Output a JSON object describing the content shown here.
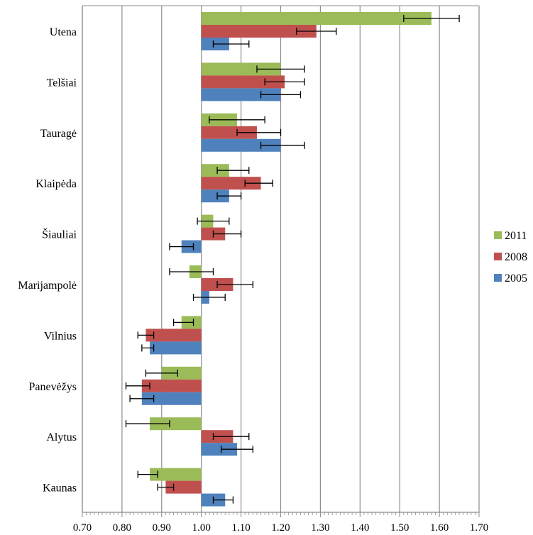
{
  "chart_data": {
    "type": "bar",
    "orientation": "horizontal",
    "base_value": 1.0,
    "categories": [
      "Utena",
      "Telšiai",
      "Tauragė",
      "Klaipėda",
      "Šiauliai",
      "Marijampolė",
      "Vilnius",
      "Panevėžys",
      "Alytus",
      "Kaunas"
    ],
    "series": [
      {
        "name": "2011",
        "color": "#9bbb59",
        "values": [
          1.58,
          1.2,
          1.09,
          1.07,
          1.03,
          0.97,
          0.95,
          0.9,
          0.87,
          0.87
        ],
        "err_low": [
          1.51,
          1.14,
          1.02,
          1.04,
          0.99,
          0.92,
          0.93,
          0.86,
          0.81,
          0.84
        ],
        "err_high": [
          1.65,
          1.26,
          1.16,
          1.12,
          1.07,
          1.03,
          0.98,
          0.94,
          0.92,
          0.89
        ]
      },
      {
        "name": "2008",
        "color": "#c0504d",
        "values": [
          1.29,
          1.21,
          1.14,
          1.15,
          1.06,
          1.08,
          0.86,
          0.85,
          1.08,
          0.91
        ],
        "err_low": [
          1.24,
          1.16,
          1.09,
          1.11,
          1.03,
          1.04,
          0.84,
          0.81,
          1.03,
          0.89
        ],
        "err_high": [
          1.34,
          1.26,
          1.2,
          1.18,
          1.1,
          1.13,
          0.88,
          0.87,
          1.12,
          0.93
        ]
      },
      {
        "name": "2005",
        "color": "#4f81bd",
        "values": [
          1.07,
          1.2,
          1.2,
          1.07,
          0.95,
          1.02,
          0.87,
          0.85,
          1.09,
          1.06
        ],
        "err_low": [
          1.03,
          1.15,
          1.15,
          1.04,
          0.92,
          0.98,
          0.85,
          0.82,
          1.05,
          1.03
        ],
        "err_high": [
          1.12,
          1.25,
          1.26,
          1.1,
          0.98,
          1.06,
          0.88,
          0.88,
          1.13,
          1.08
        ]
      }
    ],
    "xlim": [
      0.7,
      1.7
    ],
    "xticks": [
      "0.70",
      "0.80",
      "0.90",
      "1.00",
      "1.10",
      "1.20",
      "1.30",
      "1.40",
      "1.50",
      "1.60",
      "1.70"
    ],
    "title": "",
    "xlabel": "",
    "ylabel": "",
    "grid": true,
    "legend_position": "right",
    "legend_order": [
      "2011",
      "2008",
      "2005"
    ]
  }
}
